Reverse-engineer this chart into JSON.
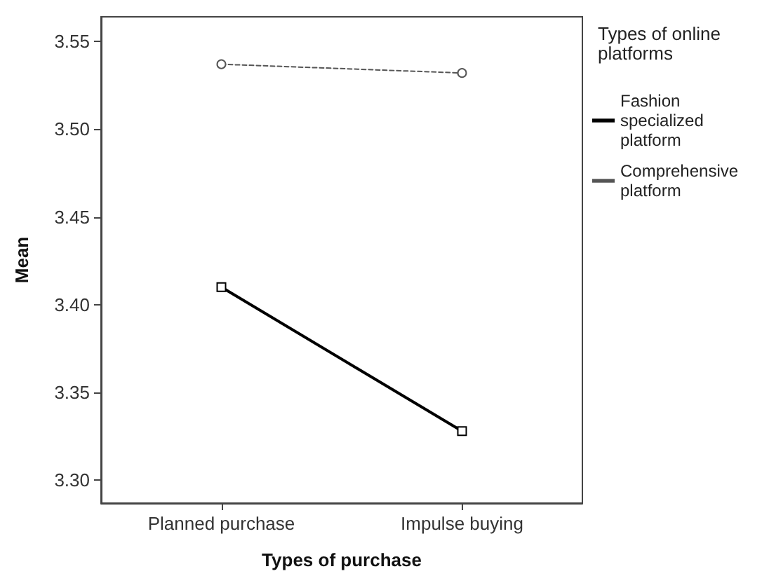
{
  "chart_data": {
    "type": "line",
    "xlabel": "Types of purchase",
    "ylabel": "Mean",
    "legend_title": "Types of online platforms",
    "categories": [
      "Planned purchase",
      "Impulse buying"
    ],
    "series": [
      {
        "name": "Fashion specialized platform",
        "color": "#000000",
        "values": [
          3.41,
          3.328
        ],
        "marker": "square",
        "line_style": "solid"
      },
      {
        "name": "Comprehensive platform",
        "color": "#555555",
        "values": [
          3.537,
          3.532
        ],
        "marker": "circle",
        "line_style": "dashed"
      }
    ],
    "ylim": [
      3.287,
      3.564
    ],
    "yticks": [
      {
        "value": 3.3,
        "label": "3.30"
      },
      3.35,
      {
        "value": 3.4,
        "label": "3.40"
      },
      3.45,
      {
        "value": 3.5,
        "label": "3.50"
      },
      3.55
    ],
    "grid": false,
    "legend": "right"
  }
}
